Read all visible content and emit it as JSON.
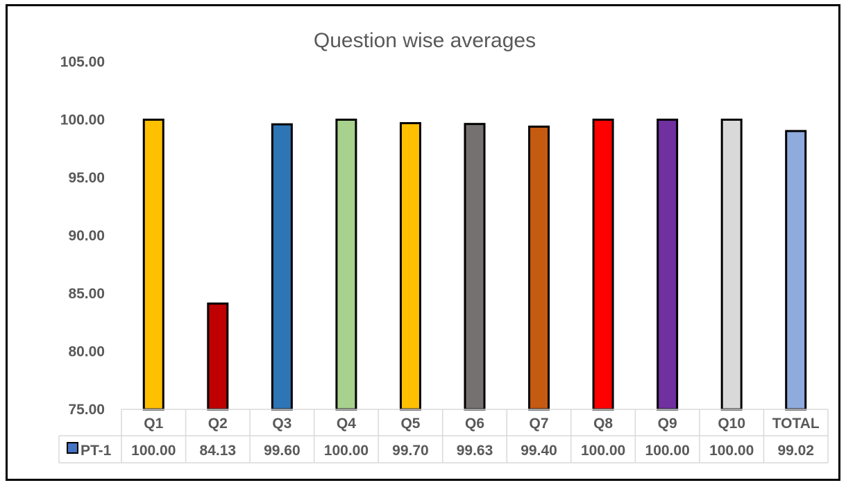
{
  "chart_data": {
    "type": "bar",
    "title": "Question wise averages",
    "categories": [
      "Q1",
      "Q2",
      "Q3",
      "Q4",
      "Q5",
      "Q6",
      "Q7",
      "Q8",
      "Q9",
      "Q10",
      "TOTAL"
    ],
    "series": [
      {
        "name": "PT-1",
        "values": [
          100.0,
          84.13,
          99.6,
          100.0,
          99.7,
          99.63,
          99.4,
          100.0,
          100.0,
          100.0,
          99.02
        ],
        "value_labels": [
          "100.00",
          "84.13",
          "99.60",
          "100.00",
          "99.70",
          "99.63",
          "99.40",
          "100.00",
          "100.00",
          "100.00",
          "99.02"
        ],
        "legend_color": "#4472C4"
      }
    ],
    "bar_colors": [
      "#FFC000",
      "#C00000",
      "#2E75B6",
      "#A9D18E",
      "#FFC000",
      "#767171",
      "#C55A11",
      "#FF0000",
      "#7030A0",
      "#D9D9D9",
      "#8FAADC"
    ],
    "ylim": [
      75,
      105
    ],
    "yticks": [
      "75.00",
      "80.00",
      "85.00",
      "90.00",
      "95.00",
      "100.00",
      "105.00"
    ],
    "grid": false,
    "legend_placement": "data-table",
    "data_table": true
  }
}
